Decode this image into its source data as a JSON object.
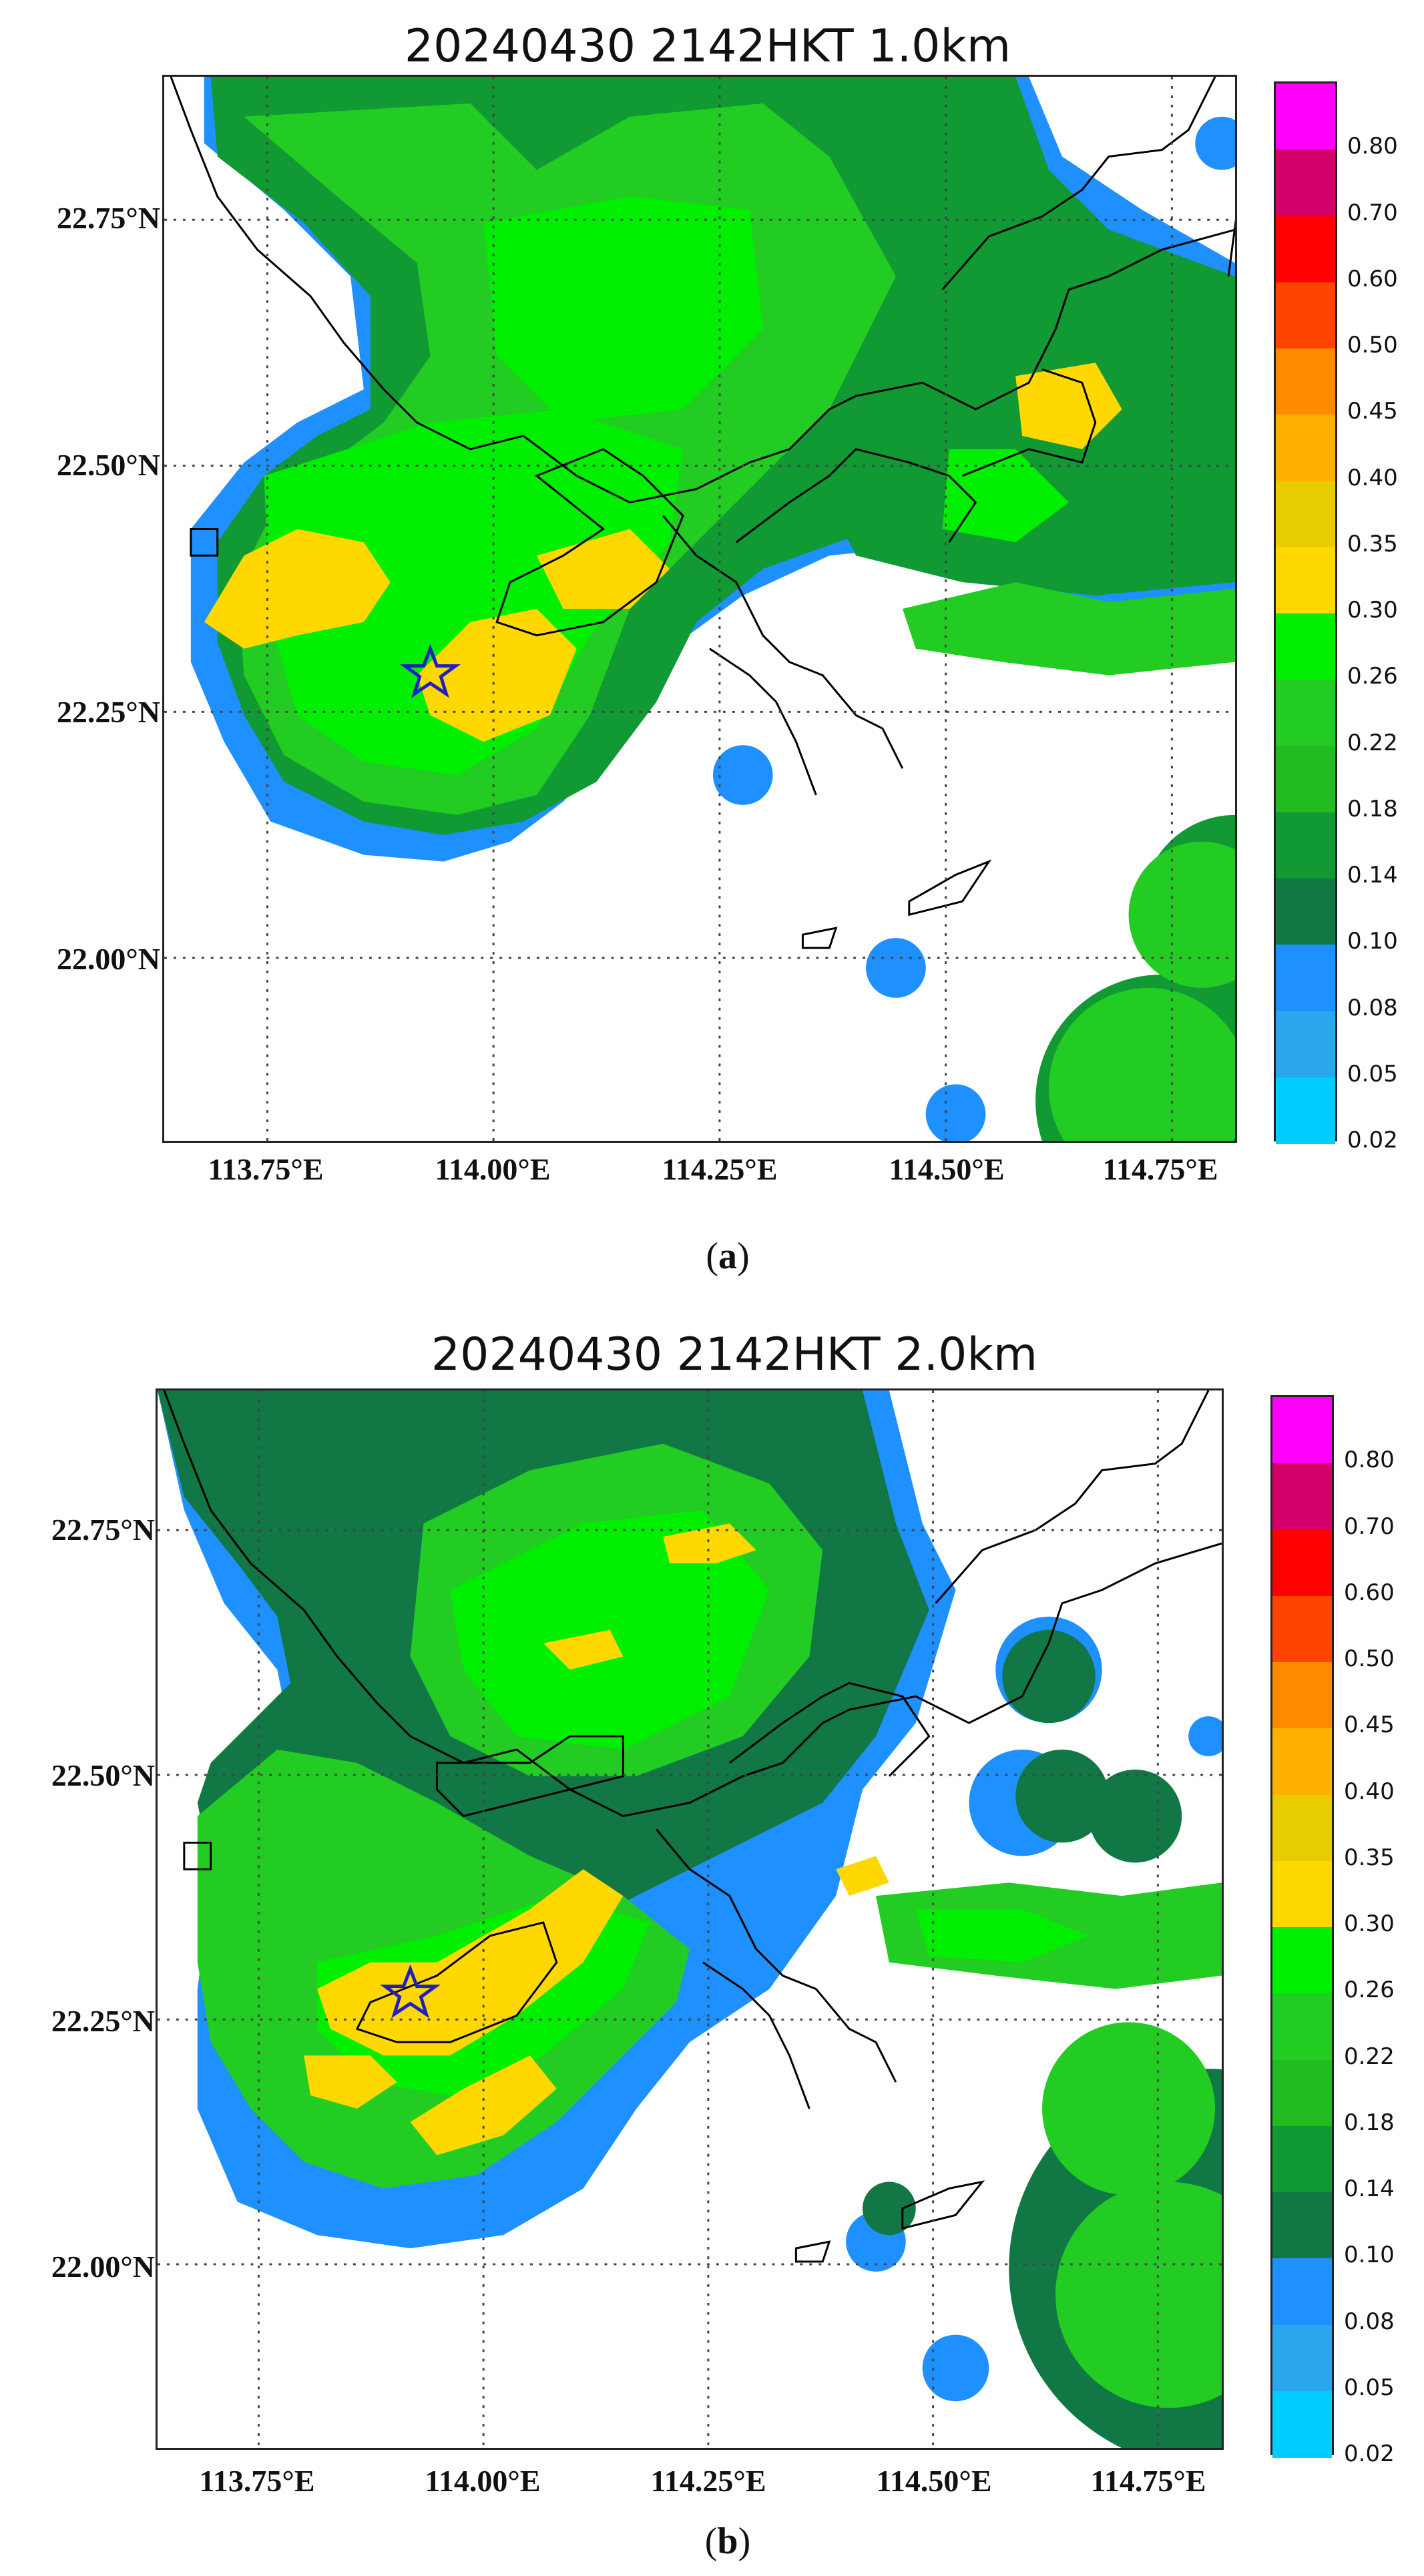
{
  "panels": [
    {
      "title": "20240430 2142HKT 1.0km",
      "caption_letter": "a",
      "lat_labels": [
        "22.75°N",
        "22.50°N",
        "22.25°N",
        "22.00°N"
      ],
      "lon_labels": [
        "113.75°E",
        "114.00°E",
        "114.25°E",
        "114.50°E",
        "114.75°E"
      ],
      "marker": "star-marker"
    },
    {
      "title": "20240430 2142HKT 2.0km",
      "caption_letter": "b",
      "lat_labels": [
        "22.75°N",
        "22.50°N",
        "22.25°N",
        "22.00°N"
      ],
      "lon_labels": [
        "113.75°E",
        "114.00°E",
        "114.25°E",
        "114.50°E",
        "114.75°E"
      ],
      "marker": "star-marker"
    }
  ],
  "colorbar": {
    "ticks": [
      "0.80",
      "0.70",
      "0.60",
      "0.50",
      "0.45",
      "0.40",
      "0.35",
      "0.30",
      "0.26",
      "0.22",
      "0.18",
      "0.14",
      "0.10",
      "0.08",
      "0.05",
      "0.02"
    ],
    "colors": [
      "#ff00ff",
      "#d4006a",
      "#ff0000",
      "#ff4400",
      "#ff8a00",
      "#ffb000",
      "#e6cc00",
      "#ffd800",
      "#00ee00",
      "#22cc22",
      "#22bb22",
      "#119933",
      "#117744",
      "#1e90ff",
      "#2aa6ef",
      "#00ccff"
    ]
  },
  "legend_colors": {
    "coastline": "#000000",
    "marker": "#2020c0",
    "grid": "#444444"
  }
}
